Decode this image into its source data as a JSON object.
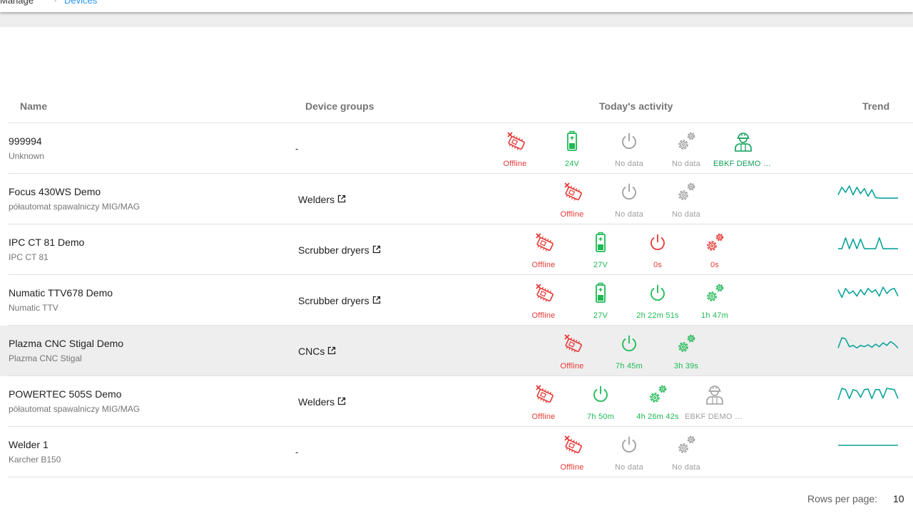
{
  "breadcrumb": {
    "manage": "Manage",
    "separator": "›",
    "devices": "Devices"
  },
  "table": {
    "headers": {
      "name": "Name",
      "groups": "Device groups",
      "activity": "Today's activity",
      "trend": "Trend"
    },
    "rows": [
      {
        "name": "999994",
        "model": "Unknown",
        "group": "-",
        "activity": [
          {
            "type": "offline",
            "label": "Offline"
          },
          {
            "type": "battery",
            "label": "24V"
          },
          {
            "type": "power",
            "label": "No data",
            "state": "nodata"
          },
          {
            "type": "gears",
            "label": "No data",
            "state": "nodata"
          },
          {
            "type": "worker",
            "label": "EBKF DEMO 2...",
            "state": "on"
          }
        ],
        "trend": []
      },
      {
        "name": "Focus 430WS Demo",
        "model": "półautomat spawalniczy MIG/MAG",
        "group": "Welders",
        "activity": [
          {
            "type": "offline",
            "label": "Offline"
          },
          {
            "type": "power",
            "label": "No data",
            "state": "nodata"
          },
          {
            "type": "gears",
            "label": "No data",
            "state": "nodata"
          }
        ],
        "trend": [
          0.3,
          0.9,
          0.5,
          1.0,
          0.3,
          0.9,
          0.4,
          0.8,
          0.2,
          0.7,
          0.1,
          0.05,
          0.05,
          0.05,
          0.05,
          0.05,
          0.05
        ]
      },
      {
        "name": "IPC CT 81 Demo",
        "model": "IPC CT 81",
        "group": "Scrubber dryers",
        "activity": [
          {
            "type": "offline",
            "label": "Offline"
          },
          {
            "type": "battery",
            "label": "27V"
          },
          {
            "type": "power",
            "label": "0s",
            "state": "alert"
          },
          {
            "type": "gears",
            "label": "0s",
            "state": "alert"
          }
        ],
        "trend": [
          0.05,
          0.05,
          0.9,
          0.05,
          0.8,
          0.05,
          0.8,
          0.05,
          0.05,
          0.05,
          0.05,
          0.9,
          0.05,
          0.05,
          0.05,
          0.05,
          0.05
        ]
      },
      {
        "name": "Numatic TTV678 Demo",
        "model": "Numatic TTV",
        "group": "Scrubber dryers",
        "activity": [
          {
            "type": "offline",
            "label": "Offline"
          },
          {
            "type": "battery",
            "label": "27V"
          },
          {
            "type": "power",
            "label": "2h 22m 51s",
            "state": "on"
          },
          {
            "type": "gears",
            "label": "1h 47m",
            "state": "on"
          }
        ],
        "trend": [
          0.8,
          0.2,
          0.9,
          0.5,
          0.7,
          0.3,
          0.8,
          0.4,
          0.9,
          0.6,
          0.8,
          0.3,
          1.0,
          0.5,
          0.8,
          0.9,
          0.3
        ]
      },
      {
        "name": "Plazma CNC Stigal Demo",
        "model": "Plazma CNC Stigal",
        "group": "CNCs",
        "selected": true,
        "activity": [
          {
            "type": "offline",
            "label": "Offline"
          },
          {
            "type": "power",
            "label": "7h 45m",
            "state": "on"
          },
          {
            "type": "gears",
            "label": "3h 39s",
            "state": "on"
          }
        ],
        "trend": [
          0.2,
          1.0,
          0.9,
          0.3,
          0.4,
          0.2,
          0.4,
          0.3,
          0.45,
          0.25,
          0.5,
          0.3,
          0.6,
          0.4,
          0.7,
          0.5,
          0.2
        ]
      },
      {
        "name": "POWERTEC 505S Demo",
        "model": "półautomat spawalniczy MIG/MAG",
        "group": "Welders",
        "activity": [
          {
            "type": "offline",
            "label": "Offline"
          },
          {
            "type": "power",
            "label": "7h 50m",
            "state": "on"
          },
          {
            "type": "gears",
            "label": "4h 26m 42s",
            "state": "on"
          },
          {
            "type": "worker",
            "label": "EBKF DEMO 2...",
            "state": "nodata"
          }
        ],
        "trend": [
          0.1,
          1.0,
          0.9,
          0.2,
          0.9,
          0.8,
          0.3,
          0.9,
          0.95,
          0.2,
          0.9,
          0.9,
          0.25,
          1.0,
          0.95,
          0.9,
          0.2
        ]
      },
      {
        "name": "Welder 1",
        "model": "Karcher B150",
        "group": "-",
        "activity": [
          {
            "type": "offline",
            "label": "Offline"
          },
          {
            "type": "power",
            "label": "No data",
            "state": "nodata"
          },
          {
            "type": "gears",
            "label": "No data",
            "state": "nodata"
          }
        ],
        "trend": [
          0.5,
          0.5,
          0.5,
          0.5,
          0.5,
          0.5,
          0.5,
          0.5,
          0.5,
          0.5,
          0.5,
          0.5,
          0.5,
          0.5,
          0.5,
          0.5,
          0.5
        ]
      }
    ]
  },
  "pagination": {
    "rows_per_page_label": "Rows per page:",
    "rows_per_page_value": "10"
  },
  "colors": {
    "accent": "#2196f3",
    "offline": "#e53935",
    "on": "#1db954",
    "nodata": "#9e9e9e",
    "trend": "#0aa39a"
  }
}
